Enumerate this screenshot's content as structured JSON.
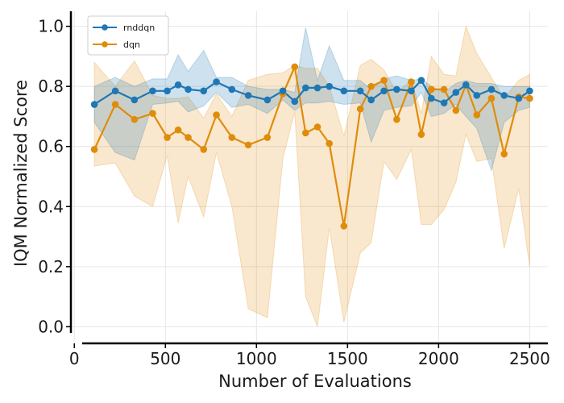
{
  "chart_data": {
    "type": "line",
    "title": "",
    "xlabel": "Number of Evaluations",
    "ylabel": "IQM Normalized Score",
    "xlim": [
      -10,
      2600
    ],
    "ylim": [
      -0.05,
      1.05
    ],
    "xticks": [
      0,
      500,
      1000,
      1500,
      2000,
      2500
    ],
    "yticks": [
      0.0,
      0.2,
      0.4,
      0.6,
      0.8,
      1.0
    ],
    "xtick_labels": [
      "0",
      "500",
      "1000",
      "1500",
      "2000",
      "2500"
    ],
    "ytick_labels": [
      "0.0",
      "0.2",
      "0.4",
      "0.6",
      "0.8",
      "1.0"
    ],
    "grid": true,
    "legend_position": "top-left",
    "colors": {
      "rnddqn": "#1f77b4",
      "dqn": "#e08c0b"
    },
    "series": [
      {
        "name": "rnddqn",
        "x": [
          110,
          225,
          330,
          430,
          510,
          570,
          625,
          710,
          780,
          865,
          955,
          1060,
          1145,
          1210,
          1270,
          1335,
          1400,
          1480,
          1570,
          1630,
          1700,
          1770,
          1850,
          1905,
          1960,
          2030,
          2095,
          2150,
          2210,
          2290,
          2360,
          2440,
          2500
        ],
        "y": [
          0.74,
          0.785,
          0.755,
          0.785,
          0.785,
          0.805,
          0.79,
          0.785,
          0.815,
          0.79,
          0.77,
          0.755,
          0.785,
          0.75,
          0.795,
          0.795,
          0.8,
          0.785,
          0.785,
          0.755,
          0.785,
          0.79,
          0.785,
          0.82,
          0.76,
          0.745,
          0.78,
          0.805,
          0.77,
          0.79,
          0.77,
          0.76,
          0.785
        ],
        "lower": [
          0.68,
          0.58,
          0.555,
          0.74,
          0.745,
          0.75,
          0.715,
          0.735,
          0.78,
          0.73,
          0.74,
          0.71,
          0.755,
          0.72,
          0.745,
          0.745,
          0.75,
          0.74,
          0.745,
          0.615,
          0.72,
          0.73,
          0.735,
          0.78,
          0.7,
          0.71,
          0.74,
          0.7,
          0.66,
          0.52,
          0.68,
          0.72,
          0.73
        ],
        "upper": [
          0.8,
          0.83,
          0.8,
          0.825,
          0.825,
          0.905,
          0.85,
          0.92,
          0.83,
          0.83,
          0.8,
          0.79,
          0.79,
          0.78,
          0.995,
          0.82,
          0.935,
          0.82,
          0.82,
          0.79,
          0.825,
          0.835,
          0.82,
          0.825,
          0.8,
          0.78,
          0.81,
          0.82,
          0.81,
          0.81,
          0.8,
          0.8,
          0.8
        ]
      },
      {
        "name": "dqn",
        "x": [
          110,
          225,
          330,
          430,
          510,
          570,
          625,
          710,
          780,
          865,
          955,
          1060,
          1145,
          1210,
          1270,
          1335,
          1400,
          1480,
          1570,
          1630,
          1700,
          1770,
          1850,
          1905,
          1960,
          2030,
          2095,
          2150,
          2210,
          2290,
          2360,
          2440,
          2500
        ],
        "y": [
          0.59,
          0.74,
          0.69,
          0.71,
          0.63,
          0.655,
          0.63,
          0.59,
          0.705,
          0.63,
          0.605,
          0.63,
          0.775,
          0.865,
          0.645,
          0.665,
          0.61,
          0.335,
          0.725,
          0.8,
          0.82,
          0.69,
          0.815,
          0.64,
          0.79,
          0.79,
          0.72,
          0.805,
          0.705,
          0.76,
          0.575,
          0.765,
          0.76
        ],
        "lower": [
          0.535,
          0.545,
          0.435,
          0.4,
          0.57,
          0.345,
          0.5,
          0.365,
          0.58,
          0.4,
          0.06,
          0.03,
          0.56,
          0.715,
          0.1,
          0.0,
          0.33,
          0.015,
          0.245,
          0.28,
          0.55,
          0.49,
          0.59,
          0.34,
          0.34,
          0.39,
          0.48,
          0.64,
          0.55,
          0.56,
          0.26,
          0.46,
          0.2
        ],
        "upper": [
          0.88,
          0.8,
          0.885,
          0.77,
          0.76,
          0.76,
          0.765,
          0.695,
          0.775,
          0.7,
          0.82,
          0.84,
          0.845,
          0.87,
          0.86,
          0.86,
          0.8,
          0.635,
          0.87,
          0.89,
          0.855,
          0.78,
          0.82,
          0.71,
          0.9,
          0.84,
          0.835,
          1.0,
          0.91,
          0.83,
          0.76,
          0.82,
          0.84
        ]
      }
    ]
  }
}
